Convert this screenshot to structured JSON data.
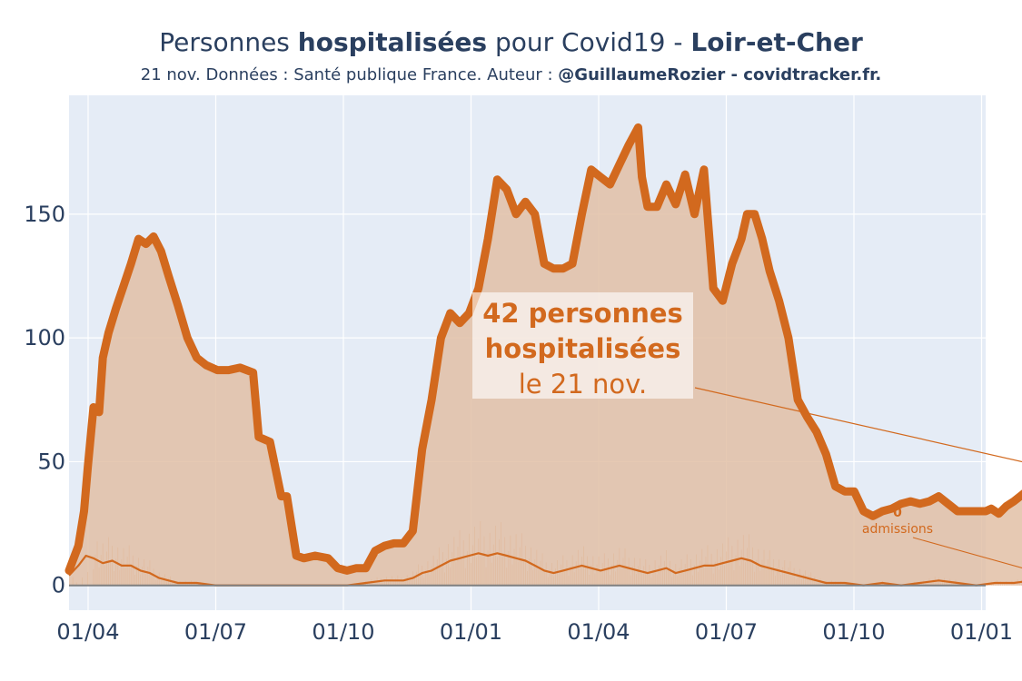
{
  "title": {
    "prefix": "Personnes ",
    "bold1": "hospitalisées",
    "middle": " pour Covid19 - ",
    "bold2": "Loir-et-Cher"
  },
  "subtitle": {
    "text": "21 nov. Données : Santé publique France. Auteur : ",
    "bold": "@GuillaumeRozier - covidtracker.fr."
  },
  "colors": {
    "line": "#d2691e",
    "fill": "#e2bfa6",
    "plot_bg": "#e5ecf6",
    "grid": "#ffffff",
    "zero_line": "#7f7f7f"
  },
  "annotation": {
    "line1": "42 personnes",
    "line2": "hospitalisées",
    "line3": "le 21 nov.",
    "admissions_value": "0",
    "admissions_label": "admissions"
  },
  "chart_data": {
    "type": "area",
    "x_ticks": [
      "01/04",
      "01/07",
      "01/10",
      "01/01",
      "01/04",
      "01/07",
      "01/10",
      "01/01"
    ],
    "y_ticks": [
      0,
      50,
      100,
      150
    ],
    "ylim": [
      -10,
      198
    ],
    "xlim_days": [
      -13,
      475
    ],
    "grid": true,
    "legend": "none",
    "series": [
      {
        "name": "hospitalisées",
        "style": "thick line with filled area",
        "points": [
          [
            -13,
            6
          ],
          [
            -8,
            16
          ],
          [
            -5,
            30
          ],
          [
            -3,
            48
          ],
          [
            0,
            72
          ],
          [
            3,
            70
          ],
          [
            5,
            92
          ],
          [
            8,
            102
          ],
          [
            12,
            112
          ],
          [
            16,
            121
          ],
          [
            20,
            130
          ],
          [
            24,
            140
          ],
          [
            28,
            138
          ],
          [
            32,
            141
          ],
          [
            36,
            135
          ],
          [
            40,
            125
          ],
          [
            45,
            113
          ],
          [
            50,
            100
          ],
          [
            55,
            92
          ],
          [
            60,
            89
          ],
          [
            66,
            87
          ],
          [
            72,
            87
          ],
          [
            78,
            88
          ],
          [
            85,
            86
          ],
          [
            88,
            60
          ],
          [
            94,
            58
          ],
          [
            100,
            36
          ],
          [
            103,
            36
          ],
          [
            108,
            12
          ],
          [
            112,
            11
          ],
          [
            118,
            12
          ],
          [
            125,
            11
          ],
          [
            130,
            7
          ],
          [
            135,
            6
          ],
          [
            140,
            7
          ],
          [
            145,
            7
          ],
          [
            150,
            14
          ],
          [
            155,
            16
          ],
          [
            160,
            17
          ],
          [
            165,
            17
          ],
          [
            170,
            22
          ],
          [
            175,
            55
          ],
          [
            180,
            75
          ],
          [
            185,
            100
          ],
          [
            190,
            110
          ],
          [
            195,
            106
          ],
          [
            200,
            110
          ],
          [
            205,
            120
          ],
          [
            210,
            140
          ],
          [
            215,
            164
          ],
          [
            220,
            160
          ],
          [
            225,
            150
          ],
          [
            230,
            155
          ],
          [
            235,
            150
          ],
          [
            240,
            130
          ],
          [
            245,
            128
          ],
          [
            250,
            128
          ],
          [
            255,
            130
          ],
          [
            260,
            150
          ],
          [
            265,
            168
          ],
          [
            270,
            165
          ],
          [
            275,
            162
          ],
          [
            280,
            170
          ],
          [
            285,
            178
          ],
          [
            290,
            185
          ],
          [
            292,
            165
          ],
          [
            295,
            153
          ],
          [
            300,
            153
          ],
          [
            305,
            162
          ],
          [
            310,
            154
          ],
          [
            315,
            166
          ],
          [
            320,
            150
          ],
          [
            325,
            168
          ],
          [
            330,
            120
          ],
          [
            335,
            115
          ],
          [
            340,
            130
          ],
          [
            345,
            140
          ],
          [
            348,
            150
          ],
          [
            352,
            150
          ],
          [
            356,
            140
          ],
          [
            360,
            127
          ],
          [
            365,
            115
          ],
          [
            370,
            100
          ],
          [
            375,
            75
          ],
          [
            380,
            68
          ],
          [
            385,
            62
          ],
          [
            390,
            53
          ],
          [
            395,
            40
          ],
          [
            400,
            38
          ],
          [
            405,
            38
          ],
          [
            410,
            30
          ],
          [
            415,
            28
          ],
          [
            420,
            30
          ],
          [
            425,
            31
          ],
          [
            430,
            33
          ],
          [
            435,
            34
          ],
          [
            440,
            33
          ],
          [
            445,
            34
          ],
          [
            450,
            36
          ],
          [
            455,
            33
          ],
          [
            460,
            30
          ],
          [
            465,
            30
          ],
          [
            470,
            30
          ],
          [
            475,
            30
          ],
          [
            478,
            31
          ],
          [
            482,
            29
          ],
          [
            486,
            32
          ],
          [
            490,
            34
          ],
          [
            495,
            37
          ],
          [
            500,
            40
          ],
          [
            505,
            41
          ],
          [
            510,
            43
          ],
          [
            514,
            42
          ]
        ]
      },
      {
        "name": "admissions",
        "style": "thin line",
        "points": [
          [
            -13,
            4
          ],
          [
            -8,
            8
          ],
          [
            -4,
            12
          ],
          [
            0,
            11
          ],
          [
            5,
            9
          ],
          [
            10,
            10
          ],
          [
            15,
            8
          ],
          [
            20,
            8
          ],
          [
            25,
            6
          ],
          [
            30,
            5
          ],
          [
            35,
            3
          ],
          [
            40,
            2
          ],
          [
            45,
            1
          ],
          [
            55,
            1
          ],
          [
            65,
            0
          ],
          [
            75,
            0
          ],
          [
            85,
            0
          ],
          [
            95,
            0
          ],
          [
            105,
            0
          ],
          [
            115,
            0
          ],
          [
            125,
            0
          ],
          [
            135,
            0
          ],
          [
            145,
            1
          ],
          [
            155,
            2
          ],
          [
            165,
            2
          ],
          [
            170,
            3
          ],
          [
            175,
            5
          ],
          [
            180,
            6
          ],
          [
            185,
            8
          ],
          [
            190,
            10
          ],
          [
            195,
            11
          ],
          [
            200,
            12
          ],
          [
            205,
            13
          ],
          [
            210,
            12
          ],
          [
            215,
            13
          ],
          [
            220,
            12
          ],
          [
            225,
            11
          ],
          [
            230,
            10
          ],
          [
            235,
            8
          ],
          [
            240,
            6
          ],
          [
            245,
            5
          ],
          [
            250,
            6
          ],
          [
            255,
            7
          ],
          [
            260,
            8
          ],
          [
            265,
            7
          ],
          [
            270,
            6
          ],
          [
            275,
            7
          ],
          [
            280,
            8
          ],
          [
            285,
            7
          ],
          [
            290,
            6
          ],
          [
            295,
            5
          ],
          [
            300,
            6
          ],
          [
            305,
            7
          ],
          [
            310,
            5
          ],
          [
            315,
            6
          ],
          [
            320,
            7
          ],
          [
            325,
            8
          ],
          [
            330,
            8
          ],
          [
            335,
            9
          ],
          [
            340,
            10
          ],
          [
            345,
            11
          ],
          [
            350,
            10
          ],
          [
            355,
            8
          ],
          [
            360,
            7
          ],
          [
            365,
            6
          ],
          [
            370,
            5
          ],
          [
            375,
            4
          ],
          [
            380,
            3
          ],
          [
            385,
            2
          ],
          [
            390,
            1
          ],
          [
            400,
            1
          ],
          [
            410,
            0
          ],
          [
            420,
            1
          ],
          [
            430,
            0
          ],
          [
            440,
            1
          ],
          [
            450,
            2
          ],
          [
            460,
            1
          ],
          [
            470,
            0
          ],
          [
            480,
            1
          ],
          [
            490,
            1
          ],
          [
            500,
            2
          ],
          [
            505,
            3
          ],
          [
            510,
            1
          ],
          [
            514,
            0
          ]
        ]
      }
    ]
  }
}
